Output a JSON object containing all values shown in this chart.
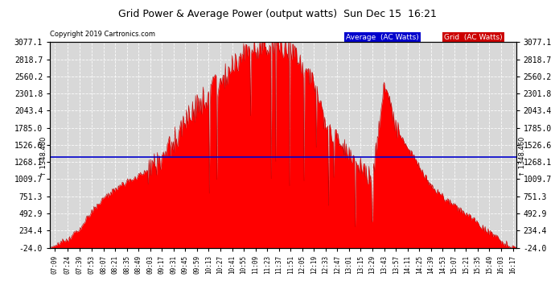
{
  "title": "Grid Power & Average Power (output watts)  Sun Dec 15  16:21",
  "copyright": "Copyright 2019 Cartronics.com",
  "average_value": 1348.46,
  "average_label": "1348.460",
  "ylim": [
    -24.0,
    3077.1
  ],
  "yticks": [
    -24.0,
    234.4,
    492.9,
    751.3,
    1009.7,
    1268.1,
    1526.6,
    1785.0,
    2043.4,
    2301.8,
    2560.2,
    2818.7,
    3077.1
  ],
  "background_color": "#d8d8d8",
  "fill_color": "#ff0000",
  "avg_line_color": "#0000cc",
  "legend_avg_bg": "#0000cc",
  "legend_grid_bg": "#cc0000",
  "x_labels": [
    "07:09",
    "07:24",
    "07:39",
    "07:53",
    "08:07",
    "08:21",
    "08:35",
    "08:49",
    "09:03",
    "09:17",
    "09:31",
    "09:45",
    "09:59",
    "10:13",
    "10:27",
    "10:41",
    "10:55",
    "11:09",
    "11:23",
    "11:37",
    "11:51",
    "12:05",
    "12:19",
    "12:33",
    "12:47",
    "13:01",
    "13:15",
    "13:29",
    "13:43",
    "13:57",
    "14:11",
    "14:25",
    "14:39",
    "14:53",
    "15:07",
    "15:21",
    "15:35",
    "15:49",
    "16:03",
    "16:17"
  ],
  "t_points": [
    7.15,
    7.4,
    7.65,
    7.88,
    8.12,
    8.35,
    8.58,
    8.82,
    9.05,
    9.28,
    9.52,
    9.75,
    9.98,
    10.22,
    10.45,
    10.68,
    10.92,
    11.15,
    11.38,
    11.62,
    11.85,
    12.08,
    12.32,
    12.55,
    12.78,
    13.02,
    13.25,
    13.48,
    13.72,
    13.95,
    14.18,
    14.42,
    14.65,
    14.88,
    15.12,
    15.35,
    15.58,
    15.82,
    16.05,
    16.28
  ],
  "y_points": [
    5,
    80,
    250,
    500,
    700,
    850,
    950,
    1050,
    1150,
    1300,
    1600,
    1900,
    2100,
    2300,
    2500,
    2700,
    2900,
    3000,
    3050,
    3077,
    2950,
    2700,
    2500,
    1800,
    1600,
    1400,
    1200,
    1000,
    2400,
    1800,
    1500,
    1200,
    900,
    750,
    600,
    500,
    350,
    200,
    80,
    -24
  ]
}
